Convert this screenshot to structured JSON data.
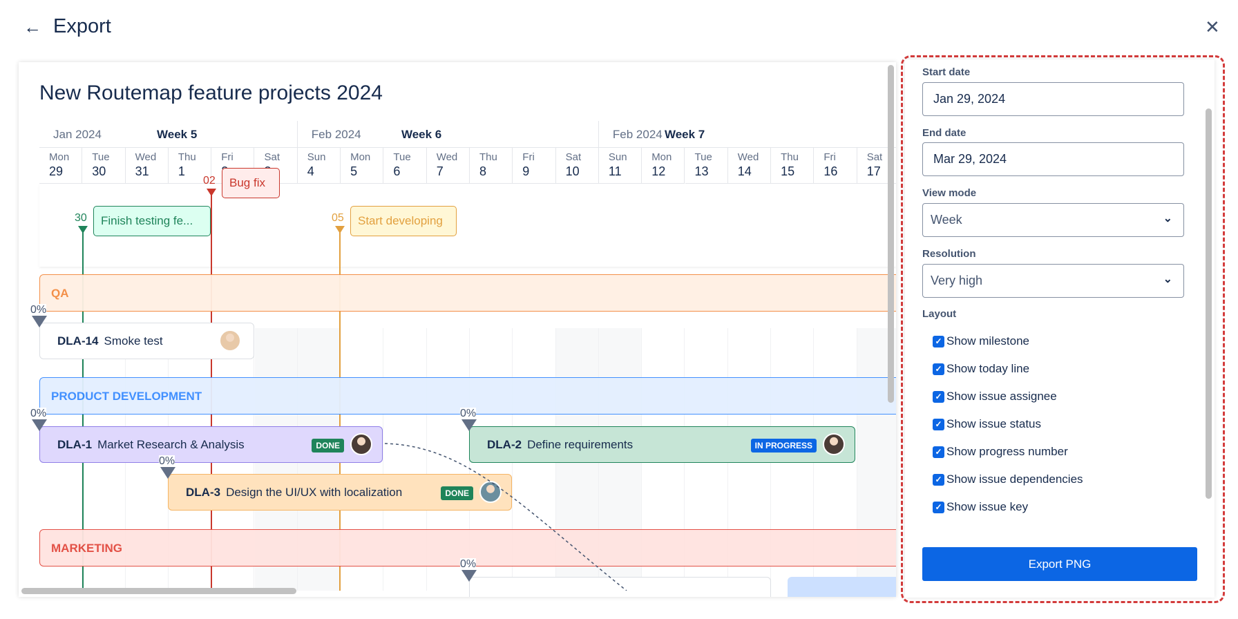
{
  "header": {
    "title": "Export",
    "back_icon": "arrow-left-icon",
    "close_icon": "close-icon"
  },
  "canvas": {
    "title": "New Routemap feature projects 2024",
    "weeks": [
      {
        "month": "Jan 2024",
        "week": "Week 5"
      },
      {
        "month": "Feb 2024",
        "week": "Week 6"
      },
      {
        "month": "Feb 2024",
        "week": "Week 7"
      }
    ],
    "days": [
      {
        "dow": "Mon",
        "d": "29"
      },
      {
        "dow": "Tue",
        "d": "30"
      },
      {
        "dow": "Wed",
        "d": "31"
      },
      {
        "dow": "Thu",
        "d": "1"
      },
      {
        "dow": "Fri",
        "d": "2"
      },
      {
        "dow": "Sat",
        "d": "3"
      },
      {
        "dow": "Sun",
        "d": "4"
      },
      {
        "dow": "Mon",
        "d": "5"
      },
      {
        "dow": "Tue",
        "d": "6"
      },
      {
        "dow": "Wed",
        "d": "7"
      },
      {
        "dow": "Thu",
        "d": "8"
      },
      {
        "dow": "Fri",
        "d": "9"
      },
      {
        "dow": "Sat",
        "d": "10"
      },
      {
        "dow": "Sun",
        "d": "11"
      },
      {
        "dow": "Mon",
        "d": "12"
      },
      {
        "dow": "Tue",
        "d": "13"
      },
      {
        "dow": "Wed",
        "d": "14"
      },
      {
        "dow": "Thu",
        "d": "15"
      },
      {
        "dow": "Fri",
        "d": "16"
      },
      {
        "dow": "Sat",
        "d": "17"
      }
    ],
    "milestones": [
      {
        "date_label": "02",
        "title": "Bug fix",
        "color": "#c9372c",
        "bg": "#ffeceb"
      },
      {
        "date_label": "30",
        "title": "Finish testing fe...",
        "color": "#1f845a",
        "bg": "#dcfff1"
      },
      {
        "date_label": "05",
        "title": "Start developing",
        "color": "#e2a03f",
        "bg": "#fff7d6"
      }
    ],
    "groups": [
      {
        "name": "QA",
        "color": "#f38a3f",
        "bg": "#fff0e3"
      },
      {
        "name": "PRODUCT DEVELOPMENT",
        "color": "#388bff",
        "bg": "#e3efff"
      },
      {
        "name": "MARKETING",
        "color": "#e2483d",
        "bg": "#ffe3e0"
      }
    ],
    "issues": [
      {
        "key": "DLA-14",
        "summary": "Smoke test",
        "progress": "0%",
        "status": "",
        "bg": "#ffffff",
        "border": "#dcdfe4"
      },
      {
        "key": "DLA-1",
        "summary": "Market Research & Analysis",
        "progress": "0%",
        "status": "DONE",
        "status_color": "#1f845a",
        "bg": "#dfd8fd",
        "border": "#8f7ee7"
      },
      {
        "key": "DLA-2",
        "summary": "Define requirements",
        "progress": "0%",
        "status": "IN PROGRESS",
        "status_color": "#0c66e4",
        "bg": "#c6e5d6",
        "border": "#1f845a"
      },
      {
        "key": "DLA-3",
        "summary": "Design the UI/UX with localization",
        "progress": "0%",
        "status": "DONE",
        "status_color": "#1f845a",
        "bg": "#ffe2bd",
        "border": "#f5b564"
      },
      {
        "key": "",
        "summary": "",
        "progress": "0%",
        "status": "",
        "bg": "#ffffff",
        "border": "#dcdfe4"
      }
    ]
  },
  "panel": {
    "start_date_label": "Start date",
    "start_date": "Jan 29, 2024",
    "end_date_label": "End date",
    "end_date": "Mar 29, 2024",
    "view_mode_label": "View mode",
    "view_mode": "Week",
    "resolution_label": "Resolution",
    "resolution": "Very high",
    "layout_label": "Layout",
    "options": [
      {
        "label": "Show milestone",
        "checked": true
      },
      {
        "label": "Show today line",
        "checked": true
      },
      {
        "label": "Show issue assignee",
        "checked": true
      },
      {
        "label": "Show issue status",
        "checked": true
      },
      {
        "label": "Show progress number",
        "checked": true
      },
      {
        "label": "Show issue dependencies",
        "checked": true
      },
      {
        "label": "Show issue key",
        "checked": true
      }
    ],
    "export_button": "Export PNG",
    "highlight_color": "#d33b3b",
    "accent_color": "#0c66e4"
  }
}
